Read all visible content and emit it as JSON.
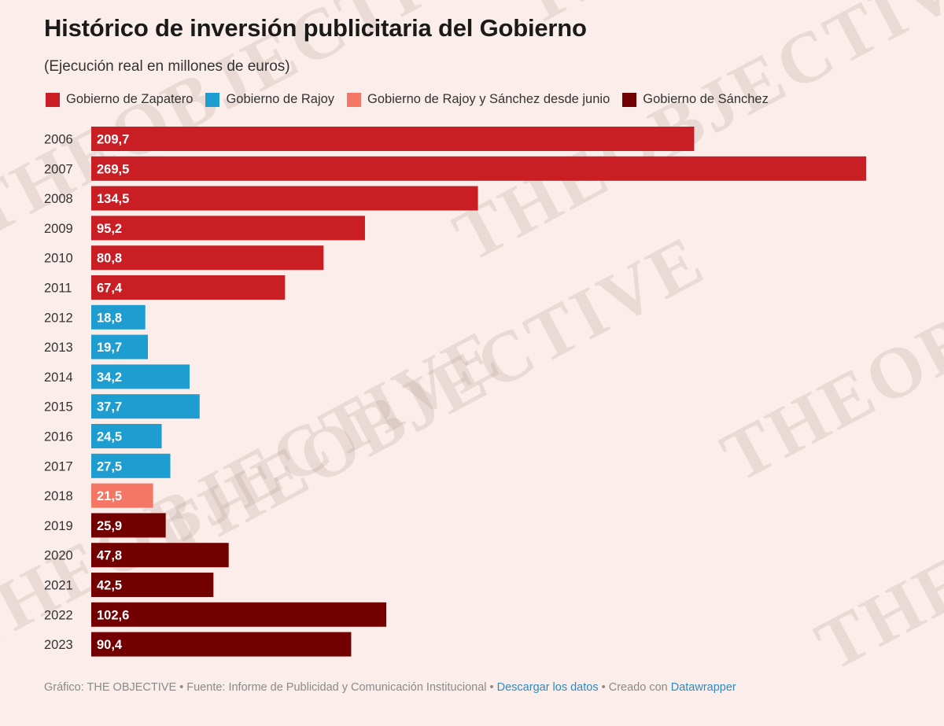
{
  "title": "Histórico de inversión publicitaria del Gobierno",
  "subtitle": "(Ejecución real en millones de euros)",
  "watermark_text": "THEOBJECTIVE",
  "legend": [
    {
      "label": "Gobierno de Zapatero",
      "color": "#c81e24"
    },
    {
      "label": "Gobierno de Rajoy",
      "color": "#1d9dd0"
    },
    {
      "label": "Gobierno de Rajoy y Sánchez desde junio",
      "color": "#f47664"
    },
    {
      "label": "Gobierno de Sánchez",
      "color": "#720000"
    }
  ],
  "chart_data": {
    "type": "bar",
    "orientation": "horizontal",
    "title": "Histórico de inversión publicitaria del Gobierno",
    "subtitle": "(Ejecución real en millones de euros)",
    "categories": [
      "2006",
      "2007",
      "2008",
      "2009",
      "2010",
      "2011",
      "2012",
      "2013",
      "2014",
      "2015",
      "2016",
      "2017",
      "2018",
      "2019",
      "2020",
      "2021",
      "2022",
      "2023"
    ],
    "values": [
      209.7,
      269.5,
      134.5,
      95.2,
      80.8,
      67.4,
      18.8,
      19.7,
      34.2,
      37.7,
      24.5,
      27.5,
      21.5,
      25.9,
      47.8,
      42.5,
      102.6,
      90.4
    ],
    "value_labels": [
      "209,7",
      "269,5",
      "134,5",
      "95,2",
      "80,8",
      "67,4",
      "18,8",
      "19,7",
      "34,2",
      "37,7",
      "24,5",
      "27,5",
      "21,5",
      "25,9",
      "47,8",
      "42,5",
      "102,6",
      "90,4"
    ],
    "groups": [
      0,
      0,
      0,
      0,
      0,
      0,
      1,
      1,
      1,
      1,
      1,
      1,
      2,
      3,
      3,
      3,
      3,
      3
    ],
    "xlim": [
      0,
      269.5
    ],
    "xlabel": "",
    "ylabel": "",
    "grid": false,
    "legend_position": "top"
  },
  "footer": {
    "prefix": "Gráfico: THE OBJECTIVE • Fuente: Informe de Publicidad y Comunicación Institucional • ",
    "download_link": "Descargar los datos",
    "middle": " • Creado con ",
    "datawrapper_link": "Datawrapper"
  }
}
